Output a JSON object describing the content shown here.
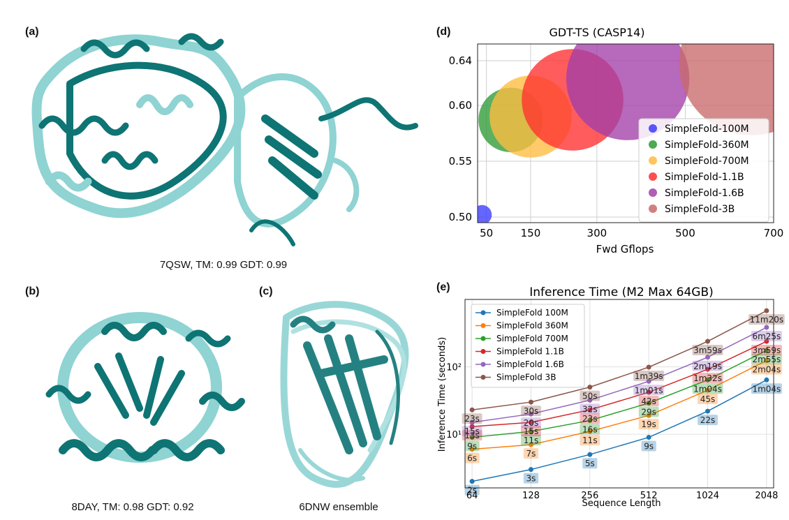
{
  "panels": {
    "a": {
      "label": "(a)",
      "caption": "7QSW, TM: 0.99 GDT: 0.99"
    },
    "b": {
      "label": "(b)",
      "caption": "8DAY, TM: 0.98 GDT: 0.92"
    },
    "c": {
      "label": "(c)",
      "caption": "6DNW ensemble"
    },
    "d": {
      "label": "(d)"
    },
    "e": {
      "label": "(e)"
    }
  },
  "colors": {
    "protein_dark": "#0e7474",
    "protein_light": "#8fd3d3"
  },
  "chart_data": [
    {
      "type": "scatter",
      "title": "GDT-TS (CASP14)",
      "xlabel": "Fwd Gflops",
      "ylabel": "",
      "xlim": [
        30,
        700
      ],
      "ylim": [
        0.495,
        0.655
      ],
      "xticks": [
        50,
        150,
        300,
        500,
        700
      ],
      "yticks": [
        0.5,
        0.55,
        0.6,
        0.64
      ],
      "ytick_labels": [
        "0.50",
        "0.55",
        "0.60",
        "0.64"
      ],
      "grid": true,
      "legend_position": "lower-right",
      "series": [
        {
          "name": "SimpleFold-100M",
          "x": 40,
          "y": 0.502,
          "size": 1,
          "color": "#3a3aff"
        },
        {
          "name": "SimpleFold-360M",
          "x": 105,
          "y": 0.587,
          "size": 3.3,
          "color": "#2e9a35"
        },
        {
          "name": "SimpleFold-700M",
          "x": 150,
          "y": 0.59,
          "size": 4.2,
          "color": "#ffbc40"
        },
        {
          "name": "SimpleFold-1.1B",
          "x": 245,
          "y": 0.605,
          "size": 5.2,
          "color": "#ff3030"
        },
        {
          "name": "SimpleFold-1.6B",
          "x": 370,
          "y": 0.624,
          "size": 6.3,
          "color": "#a33fa8"
        },
        {
          "name": "SimpleFold-3B",
          "x": 650,
          "y": 0.638,
          "size": 7.4,
          "color": "#c96a6a"
        }
      ]
    },
    {
      "type": "line",
      "title": "Inference Time (M2 Max 64GB)",
      "xlabel": "Sequence Length",
      "ylabel": "Inference Time (seconds)",
      "xscale": "log2",
      "yscale": "log10",
      "x": [
        64,
        128,
        256,
        512,
        1024,
        2048
      ],
      "xtick_labels": [
        "64",
        "128",
        "256",
        "512",
        "1024",
        "2048"
      ],
      "ylim": [
        1.6,
        1000
      ],
      "yticks": [
        10,
        100
      ],
      "ytick_labels": [
        "10¹",
        "10²"
      ],
      "grid": true,
      "legend_position": "upper-left",
      "series": [
        {
          "name": "SimpleFold 100M",
          "color": "#1f77b4",
          "values": [
            2,
            3,
            5,
            9,
            22,
            64
          ],
          "labels": [
            "2s",
            "3s",
            "5s",
            "9s",
            "22s",
            "1m04s"
          ]
        },
        {
          "name": "SimpleFold 360M",
          "color": "#ff7f0e",
          "values": [
            6,
            7,
            11,
            19,
            45,
            124
          ],
          "labels": [
            "6s",
            "7s",
            "11s",
            "19s",
            "45s",
            "2m04s"
          ]
        },
        {
          "name": "SimpleFold 700M",
          "color": "#2ca02c",
          "values": [
            9,
            11,
            16,
            29,
            64,
            175
          ],
          "labels": [
            "9s",
            "11s",
            "16s",
            "29s",
            "1m04s",
            "2m55s"
          ]
        },
        {
          "name": "SimpleFold 1.1B",
          "color": "#d62728",
          "values": [
            13,
            15,
            23,
            42,
            92,
            239
          ],
          "labels": [
            "13s",
            "15s",
            "23s",
            "42s",
            "1m32s",
            "3m59s"
          ]
        },
        {
          "name": "SimpleFold 1.6B",
          "color": "#9467bd",
          "values": [
            15,
            20,
            32,
            61,
            139,
            385
          ],
          "labels": [
            "15s",
            "20s",
            "32s",
            "1m01s",
            "2m19s",
            "6m25s"
          ]
        },
        {
          "name": "SimpleFold 3B",
          "color": "#8c564b",
          "values": [
            23,
            30,
            50,
            99,
            239,
            680
          ],
          "labels": [
            "23s",
            "30s",
            "50s",
            "1m39s",
            "3m59s",
            "11m20s"
          ]
        }
      ]
    }
  ]
}
